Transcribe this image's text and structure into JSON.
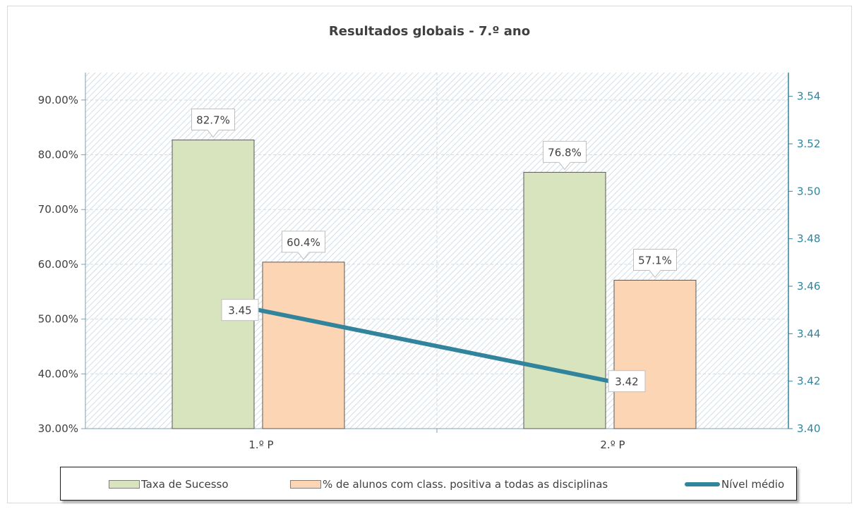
{
  "chart_data": {
    "type": "bar",
    "title": "Resultados globais - 7.º ano",
    "categories": [
      "1.º P",
      "2.º P"
    ],
    "series": [
      {
        "name": "Taxa de Sucesso",
        "kind": "bar",
        "axis": "left",
        "values": [
          82.7,
          76.8
        ],
        "labels": [
          "82.7%",
          "76.8%"
        ],
        "color": "#d7e4bd"
      },
      {
        "name": "% de alunos com class. positiva a todas as disciplinas",
        "kind": "bar",
        "axis": "left",
        "values": [
          60.4,
          57.1
        ],
        "labels": [
          "60.4%",
          "57.1%"
        ],
        "color": "#fcd5b5"
      },
      {
        "name": "Nível médio",
        "kind": "line",
        "axis": "right",
        "values": [
          3.45,
          3.42
        ],
        "labels": [
          "3.45",
          "3.42"
        ],
        "color": "#31849b"
      }
    ],
    "y_left": {
      "min": 30,
      "max": 95,
      "ticks": [
        "30.00%",
        "40.00%",
        "50.00%",
        "60.00%",
        "70.00%",
        "80.00%",
        "90.00%"
      ],
      "tick_values": [
        30,
        40,
        50,
        60,
        70,
        80,
        90
      ]
    },
    "y_right": {
      "min": 3.4,
      "max": 3.55,
      "ticks": [
        "3.40",
        "3.42",
        "3.44",
        "3.46",
        "3.48",
        "3.50",
        "3.52",
        "3.54"
      ],
      "tick_values": [
        3.4,
        3.42,
        3.44,
        3.46,
        3.48,
        3.5,
        3.52,
        3.54
      ],
      "color": "#31849b"
    },
    "grid": true,
    "legend_position": "bottom"
  }
}
